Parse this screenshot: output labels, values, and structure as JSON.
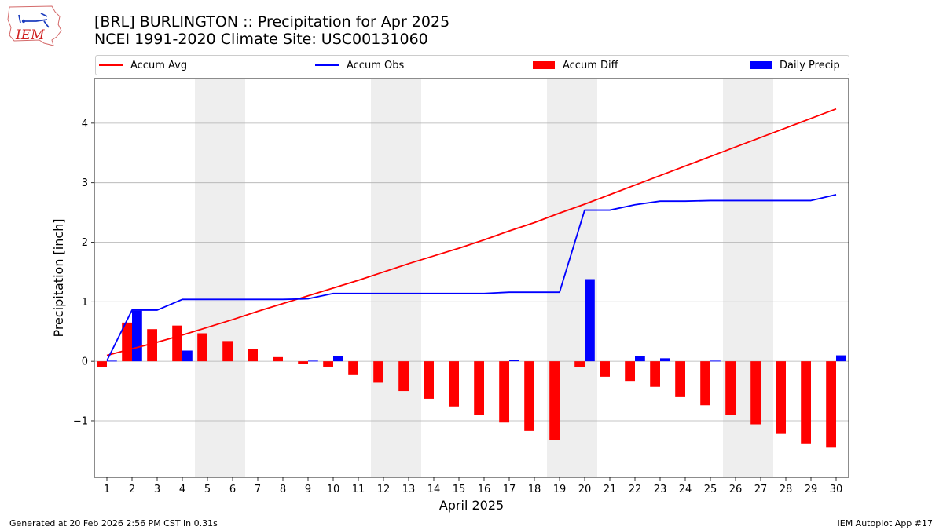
{
  "header": {
    "title_line1": "[BRL] BURLINGTON :: Precipitation for Apr 2025",
    "title_line2": "NCEI 1991-2020 Climate Site: USC00131060",
    "logo_text": "IEM"
  },
  "footer": {
    "generated": "Generated at 20 Feb 2026 2:56 PM CST in 0.31s",
    "app": "IEM Autoplot App #17"
  },
  "colors": {
    "avg": "#ff0000",
    "obs": "#0000ff",
    "diff": "#ff0000",
    "daily": "#0000ff",
    "weekend": "#eeeeee",
    "grid": "#b0b0b0"
  },
  "chart_data": {
    "type": "bar",
    "xlabel": "April 2025",
    "ylabel": "Precipitation [inch]",
    "xlim": [
      0.5,
      30.5
    ],
    "ylim": [
      -1.95,
      4.75
    ],
    "yticks": [
      -1,
      0,
      1,
      2,
      3,
      4
    ],
    "ytick_labels": [
      "−1",
      "0",
      "1",
      "2",
      "3",
      "4"
    ],
    "days": [
      1,
      2,
      3,
      4,
      5,
      6,
      7,
      8,
      9,
      10,
      11,
      12,
      13,
      14,
      15,
      16,
      17,
      18,
      19,
      20,
      21,
      22,
      23,
      24,
      25,
      26,
      27,
      28,
      29,
      30
    ],
    "weekend_spans": [
      [
        4.5,
        6.5
      ],
      [
        11.5,
        13.5
      ],
      [
        18.5,
        20.5
      ],
      [
        25.5,
        27.5
      ]
    ],
    "legend": [
      "Accum Avg",
      "Accum Obs",
      "Accum Diff",
      "Daily Precip"
    ],
    "series": [
      {
        "name": "Accum Avg",
        "kind": "line",
        "values": [
          0.1,
          0.21,
          0.32,
          0.44,
          0.57,
          0.7,
          0.84,
          0.97,
          1.1,
          1.23,
          1.36,
          1.5,
          1.64,
          1.77,
          1.9,
          2.04,
          2.19,
          2.33,
          2.49,
          2.64,
          2.8,
          2.96,
          3.12,
          3.28,
          3.44,
          3.6,
          3.76,
          3.92,
          4.08,
          4.24
        ]
      },
      {
        "name": "Accum Obs",
        "kind": "line",
        "values": [
          0.01,
          0.86,
          0.86,
          1.04,
          1.04,
          1.04,
          1.04,
          1.04,
          1.05,
          1.14,
          1.14,
          1.14,
          1.14,
          1.14,
          1.14,
          1.14,
          1.16,
          1.16,
          1.16,
          2.54,
          2.54,
          2.63,
          2.69,
          2.69,
          2.7,
          2.7,
          2.7,
          2.7,
          2.7,
          2.8
        ]
      },
      {
        "name": "Accum Diff",
        "kind": "bar",
        "values": [
          -0.1,
          0.65,
          0.54,
          0.6,
          0.47,
          0.34,
          0.2,
          0.07,
          -0.05,
          -0.09,
          -0.22,
          -0.36,
          -0.5,
          -0.63,
          -0.76,
          -0.9,
          -1.03,
          -1.17,
          -1.33,
          -0.1,
          -0.26,
          -0.33,
          -0.43,
          -0.59,
          -0.74,
          -0.9,
          -1.06,
          -1.22,
          -1.38,
          -1.44
        ]
      },
      {
        "name": "Daily Precip",
        "kind": "bar",
        "values": [
          0.01,
          0.85,
          0.0,
          0.18,
          0.0,
          0.0,
          0.0,
          0.0,
          0.01,
          0.09,
          0.0,
          0.0,
          0.0,
          0.0,
          0.0,
          0.0,
          0.02,
          0.0,
          0.0,
          1.38,
          0.0,
          0.09,
          0.05,
          0.0,
          0.01,
          0.0,
          0.0,
          0.0,
          0.0,
          0.1
        ]
      }
    ]
  }
}
